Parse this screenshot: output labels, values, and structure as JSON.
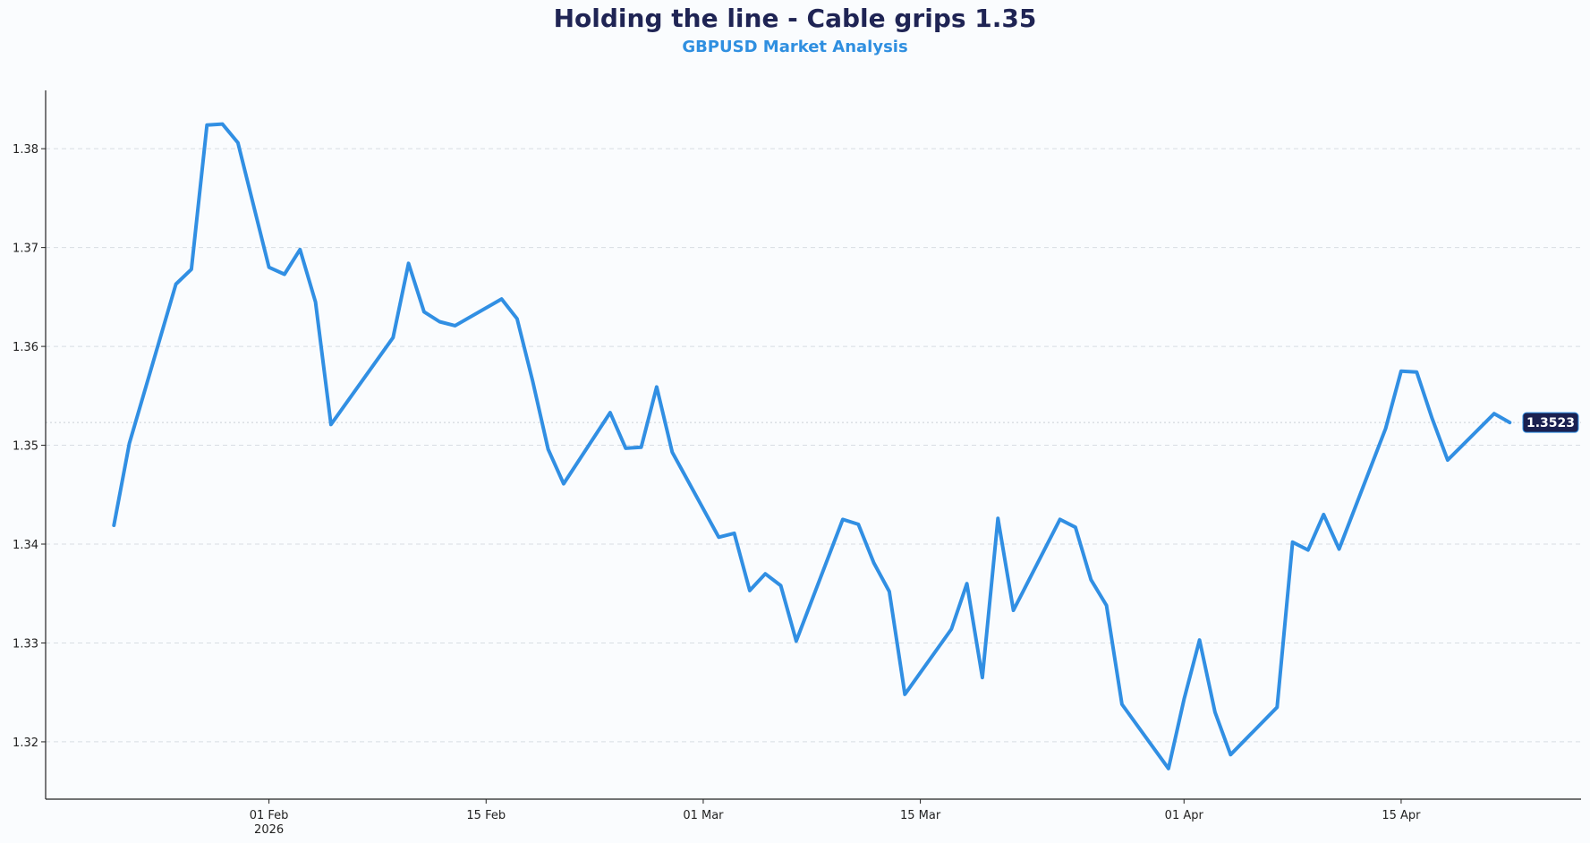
{
  "header": {
    "title": "Holding the line - Cable grips 1.35",
    "subtitle": "GBPUSD Market Analysis"
  },
  "colors": {
    "line": "#318fe3",
    "title": "#1f2454",
    "subtitle": "#2f8fe0",
    "grid": "#d8dde3",
    "badge_bg": "#1b2150"
  },
  "chart_data": {
    "type": "line",
    "title": "Holding the line - Cable grips 1.35",
    "subtitle": "GBPUSD Market Analysis",
    "xlabel": "",
    "ylabel": "",
    "grid": "horizontal dashed",
    "series": [
      {
        "name": "GBPUSD",
        "x_days": [
          -10,
          -9,
          -6,
          -5,
          -4,
          -3,
          -2,
          0,
          1,
          2,
          3,
          4,
          8,
          9,
          10,
          11,
          12,
          15,
          16,
          17,
          18,
          19,
          22,
          23,
          24,
          25,
          26,
          29,
          30,
          31,
          32,
          33,
          34,
          37,
          38,
          39,
          40,
          41,
          44,
          45,
          46,
          47,
          48,
          51,
          52,
          53,
          54,
          55,
          58,
          59,
          60,
          61,
          62,
          65,
          66,
          67,
          68,
          69,
          72,
          73,
          74,
          75,
          76,
          79,
          80
        ],
        "values": [
          1.3419,
          1.3502,
          1.3663,
          1.3678,
          1.3824,
          1.3825,
          1.3806,
          1.368,
          1.3673,
          1.3698,
          1.3645,
          1.3521,
          1.3609,
          1.3684,
          1.3635,
          1.3625,
          1.3621,
          1.3648,
          1.3628,
          1.3565,
          1.3496,
          1.3461,
          1.3533,
          1.3497,
          1.3498,
          1.3559,
          1.3493,
          1.3407,
          1.3411,
          1.3353,
          1.337,
          1.3358,
          1.3302,
          1.3425,
          1.342,
          1.3381,
          1.3352,
          1.3248,
          1.3314,
          1.336,
          1.3265,
          1.3426,
          1.3333,
          1.3425,
          1.3417,
          1.3364,
          1.3338,
          1.3238,
          1.3173,
          1.3243,
          1.3303,
          1.323,
          1.3187,
          1.3235,
          1.3402,
          1.3394,
          1.343,
          1.3395,
          1.3517,
          1.3575,
          1.3574,
          1.3527,
          1.3485,
          1.3532,
          1.3523
        ]
      }
    ],
    "x_ticks": [
      {
        "day": 0,
        "label": "01 Feb",
        "sublabel": "2026"
      },
      {
        "day": 14,
        "label": "15 Feb",
        "sublabel": ""
      },
      {
        "day": 28,
        "label": "01 Mar",
        "sublabel": ""
      },
      {
        "day": 42,
        "label": "15 Mar",
        "sublabel": ""
      },
      {
        "day": 59,
        "label": "01 Apr",
        "sublabel": ""
      },
      {
        "day": 73,
        "label": "15 Apr",
        "sublabel": ""
      }
    ],
    "xlim": [
      -14.4,
      84.6
    ],
    "y_ticks": [
      1.32,
      1.33,
      1.34,
      1.35,
      1.36,
      1.37,
      1.38
    ],
    "ylim": [
      1.3142,
      1.3859
    ],
    "last_value_label": "1.3523"
  }
}
